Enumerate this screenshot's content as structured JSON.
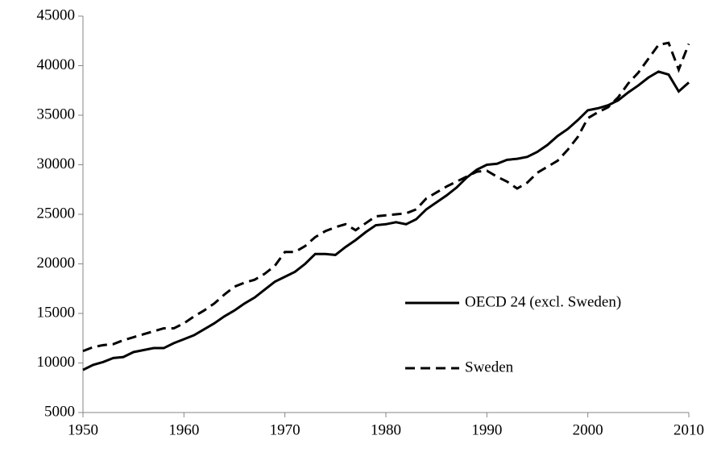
{
  "chart_data": {
    "type": "line",
    "x": [
      1950,
      1951,
      1952,
      1953,
      1954,
      1955,
      1956,
      1957,
      1958,
      1959,
      1960,
      1961,
      1962,
      1963,
      1964,
      1965,
      1966,
      1967,
      1968,
      1969,
      1970,
      1971,
      1972,
      1973,
      1974,
      1975,
      1976,
      1977,
      1978,
      1979,
      1980,
      1981,
      1982,
      1983,
      1984,
      1985,
      1986,
      1987,
      1988,
      1989,
      1990,
      1991,
      1992,
      1993,
      1994,
      1995,
      1996,
      1997,
      1998,
      1999,
      2000,
      2001,
      2002,
      2003,
      2004,
      2005,
      2006,
      2007,
      2008,
      2009,
      2010
    ],
    "series": [
      {
        "name": "OECD 24 (excl. Sweden)",
        "color": "#000000",
        "line_style": "solid",
        "values": [
          9300,
          9800,
          10100,
          10500,
          10600,
          11100,
          11300,
          11500,
          11500,
          12000,
          12400,
          12800,
          13400,
          14000,
          14700,
          15300,
          16000,
          16600,
          17400,
          18200,
          18700,
          19200,
          20000,
          21000,
          21000,
          20900,
          21700,
          22400,
          23200,
          23900,
          24000,
          24200,
          24000,
          24500,
          25500,
          26200,
          26900,
          27700,
          28700,
          29500,
          30000,
          30100,
          30500,
          30600,
          30800,
          31300,
          32000,
          32900,
          33600,
          34500,
          35500,
          35700,
          36000,
          36500,
          37300,
          38000,
          38800,
          39400,
          39100,
          37400,
          38300
        ]
      },
      {
        "name": "Sweden",
        "color": "#000000",
        "line_style": "dashed",
        "values": [
          11200,
          11600,
          11800,
          11900,
          12300,
          12600,
          12900,
          13200,
          13500,
          13500,
          14000,
          14700,
          15300,
          16000,
          16900,
          17700,
          18100,
          18400,
          19000,
          19800,
          21200,
          21200,
          21800,
          22700,
          23300,
          23700,
          24000,
          23400,
          24100,
          24800,
          24900,
          25000,
          25100,
          25500,
          26600,
          27200,
          27800,
          28300,
          28800,
          29300,
          29400,
          28800,
          28300,
          27600,
          28200,
          29200,
          29800,
          30400,
          31500,
          32800,
          34700,
          35300,
          35800,
          36800,
          38200,
          39300,
          40700,
          42100,
          42300,
          39600,
          42200
        ]
      }
    ],
    "xlim": [
      1950,
      2010
    ],
    "xticks": [
      1950,
      1960,
      1970,
      1980,
      1990,
      2000,
      2010
    ],
    "ylim": [
      5000,
      45000
    ],
    "yticks": [
      5000,
      10000,
      15000,
      20000,
      25000,
      30000,
      35000,
      40000,
      45000
    ],
    "grid": false,
    "legend": "right"
  }
}
